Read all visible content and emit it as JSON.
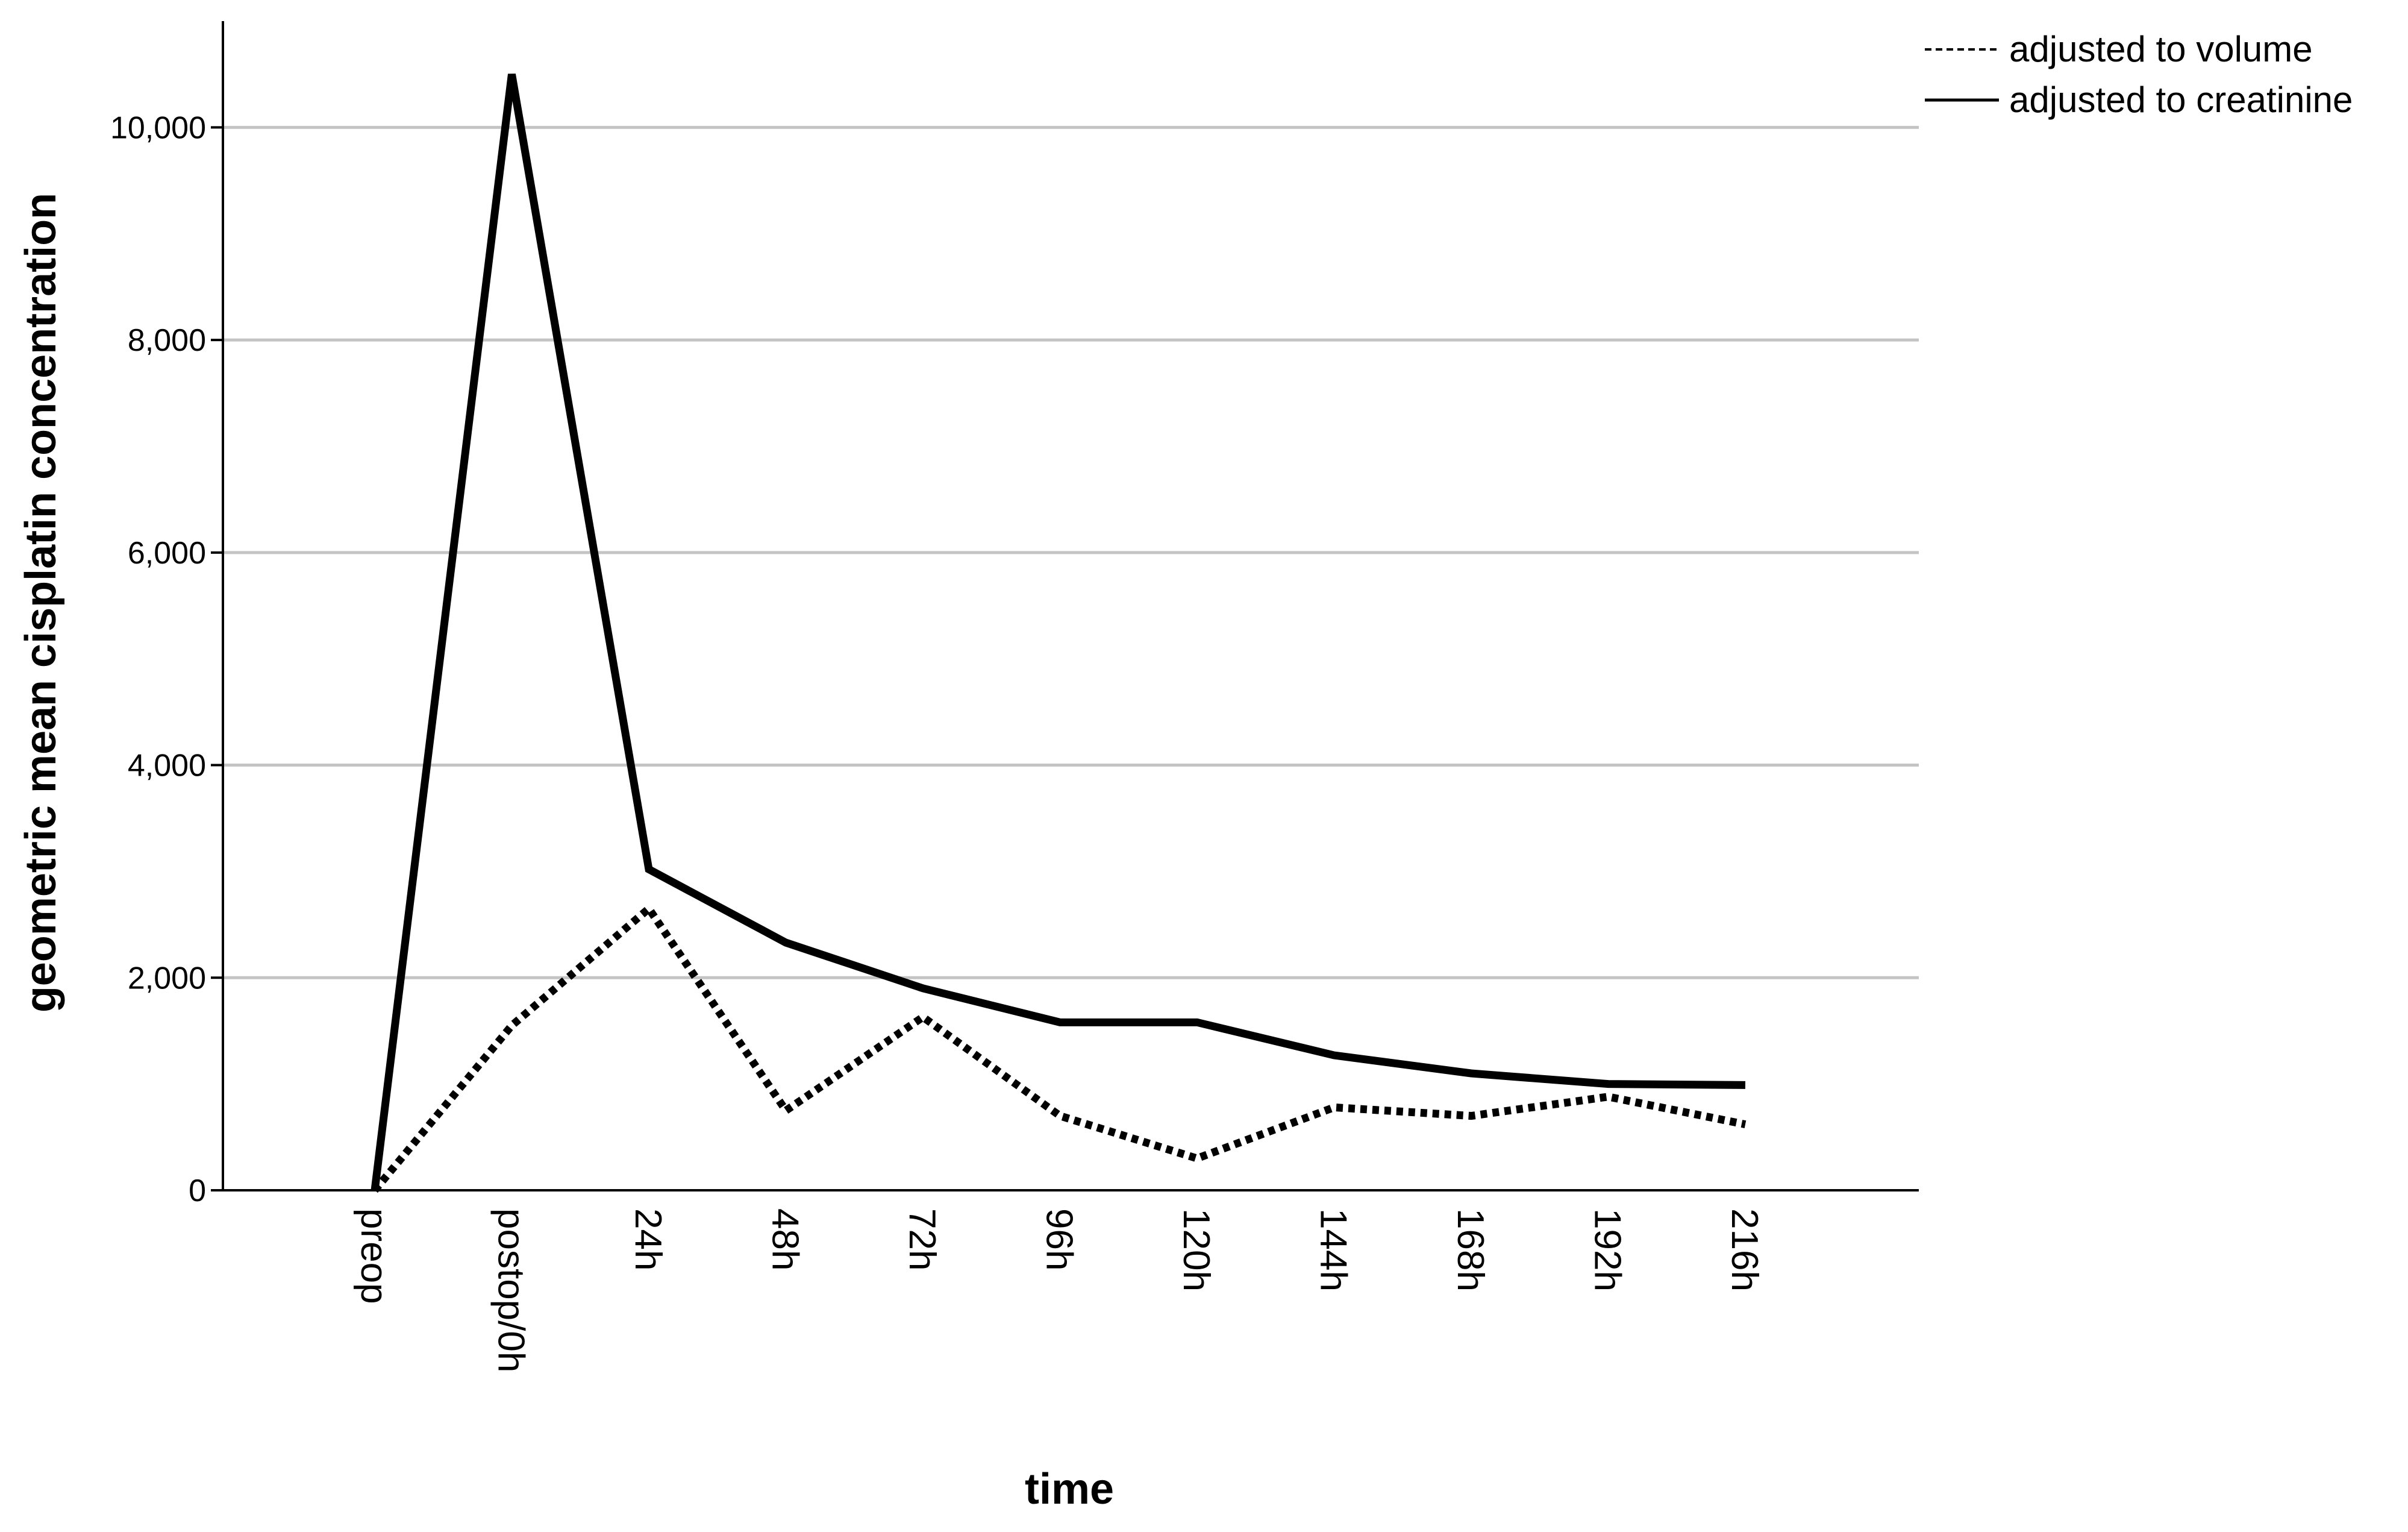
{
  "chart_data": {
    "type": "line",
    "title": "",
    "xlabel": "time",
    "ylabel": "geometric mean cisplatin concentration",
    "categories": [
      "preop",
      "postop/0h",
      "24h",
      "48h",
      "72h",
      "96h",
      "120h",
      "144h",
      "168h",
      "192h",
      "216h"
    ],
    "ylim": [
      0,
      11000
    ],
    "yticks": [
      0,
      2000,
      4000,
      6000,
      8000,
      10000
    ],
    "ytick_labels": [
      "0",
      "2,000",
      "4,000",
      "6,000",
      "8,000",
      "10,000"
    ],
    "grid": "horizontal",
    "legend_position": "top-right",
    "series": [
      {
        "name": "adjusted to volume",
        "line_style": "dotted",
        "color": "#000000",
        "values": [
          0,
          1550,
          2650,
          750,
          1630,
          700,
          300,
          780,
          700,
          880,
          620
        ]
      },
      {
        "name": "adjusted to creatinine",
        "line_style": "solid",
        "color": "#000000",
        "values": [
          0,
          10500,
          3020,
          2330,
          1900,
          1580,
          1580,
          1270,
          1100,
          1000,
          990
        ]
      }
    ]
  }
}
